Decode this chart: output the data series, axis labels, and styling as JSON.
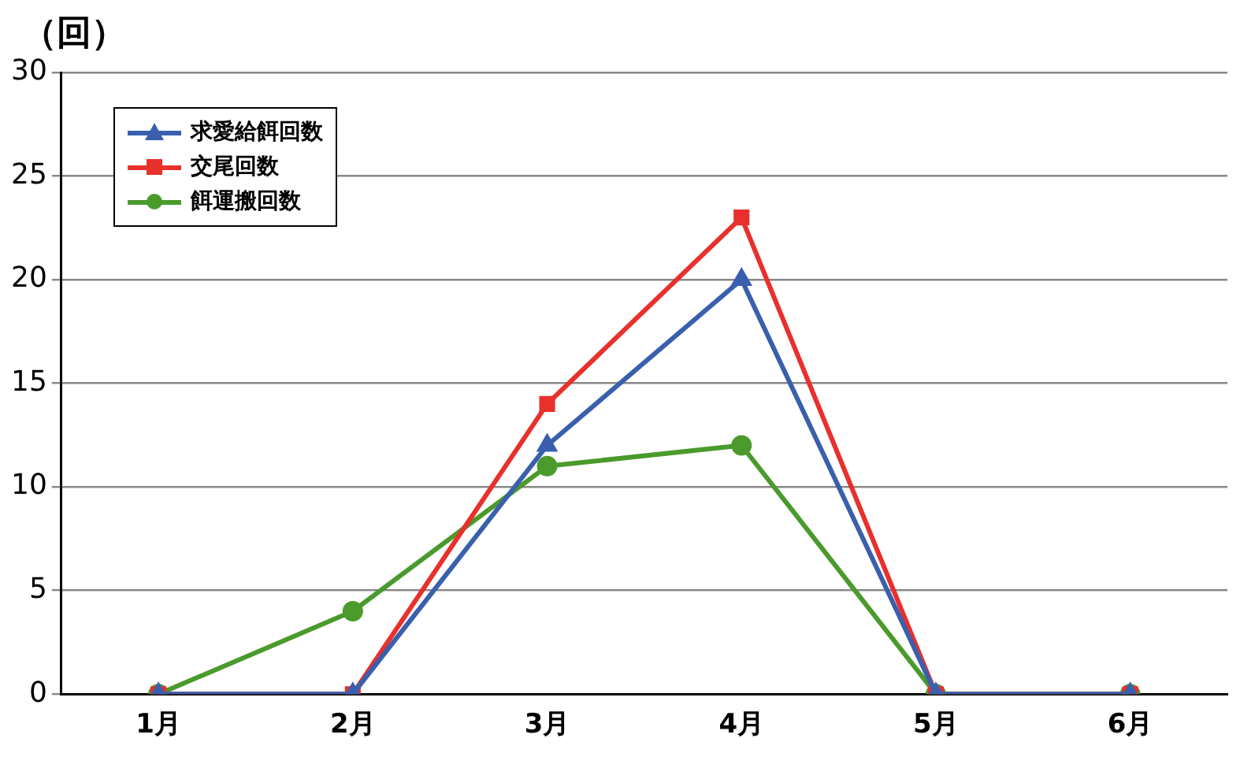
{
  "chart_data": {
    "type": "line",
    "ylabel": "（回）",
    "categories": [
      "1月",
      "2月",
      "3月",
      "4月",
      "5月",
      "6月"
    ],
    "series": [
      {
        "name": "求愛給餌回数",
        "color": "#3a5fad",
        "marker": "triangle",
        "values": [
          0,
          0,
          12,
          20,
          0,
          0
        ]
      },
      {
        "name": "交尾回数",
        "color": "#e8302c",
        "marker": "square",
        "values": [
          0,
          0,
          14,
          23,
          0,
          0
        ]
      },
      {
        "name": "餌運搬回数",
        "color": "#4a9a2c",
        "marker": "circle",
        "values": [
          0,
          4,
          11,
          12,
          0,
          0
        ]
      }
    ],
    "ylim": [
      0,
      30
    ],
    "yticks": [
      0,
      5,
      10,
      15,
      20,
      25,
      30
    ],
    "grid": "y",
    "legend": "top left"
  }
}
